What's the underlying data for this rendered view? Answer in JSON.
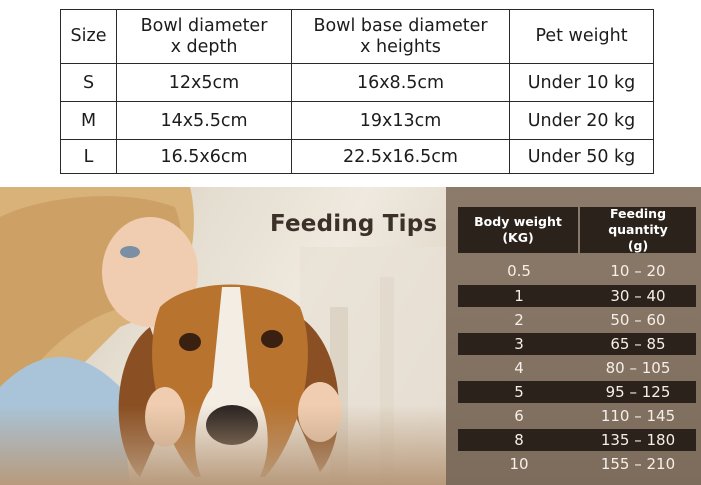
{
  "size_table": {
    "headers": {
      "size": "Size",
      "bowl_diameter_line1": "Bowl diameter",
      "bowl_diameter_line2": "x depth",
      "base_line1": "Bowl base diameter",
      "base_line2": "x heights",
      "weight": "Pet weight"
    },
    "rows": [
      {
        "size": "S",
        "bowl": "12x5cm",
        "base": "16x8.5cm",
        "weight": "Under 10 kg"
      },
      {
        "size": "M",
        "bowl": "14x5.5cm",
        "base": "19x13cm",
        "weight": "Under 20 kg"
      },
      {
        "size": "L",
        "bowl": "16.5x6cm",
        "base": "22.5x16.5cm",
        "weight": "Under 50 kg"
      }
    ]
  },
  "feeding": {
    "title": "Feeding Tips",
    "header_weight_line1": "Body weight",
    "header_weight_line2": "(KG)",
    "header_qty_line1": "Feeding quantity",
    "header_qty_line2": "(g)",
    "rows": [
      {
        "weight": "0.5",
        "qty": "10 – 20"
      },
      {
        "weight": "1",
        "qty": "30 – 40"
      },
      {
        "weight": "2",
        "qty": "50 – 60"
      },
      {
        "weight": "3",
        "qty": "65 – 85"
      },
      {
        "weight": "4",
        "qty": "80 – 105"
      },
      {
        "weight": "5",
        "qty": "95 – 125"
      },
      {
        "weight": "6",
        "qty": "110 – 145"
      },
      {
        "weight": "8",
        "qty": "135 – 180"
      },
      {
        "weight": "10",
        "qty": "155 – 210"
      }
    ]
  },
  "colors": {
    "panel_brown": "#8c7b6a",
    "row_dark": "#2b221b",
    "title_brown": "#3b3129"
  }
}
